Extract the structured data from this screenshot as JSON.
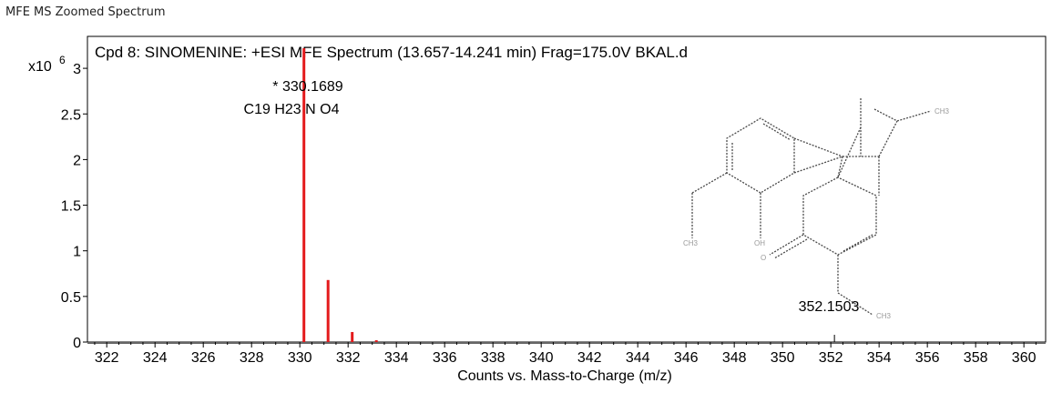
{
  "window_title": "MFE MS Zoomed Spectrum",
  "colors": {
    "peak": "#e41a1c",
    "axis": "#000000",
    "structure": "#555555",
    "structure_label": "#9a9a9a"
  },
  "chart_data": {
    "type": "bar",
    "title": "Cpd 8: SINOMENINE: +ESI MFE Spectrum (13.657-14.241 min) Frag=175.0V BKAL.d",
    "xlabel": "Counts vs. Mass-to-Charge (m/z)",
    "y_exponent_label": "x10",
    "y_exponent_power": "6",
    "xlim": [
      321.2,
      360.9
    ],
    "ylim": [
      0,
      3.35
    ],
    "x_ticks": [
      322,
      324,
      326,
      328,
      330,
      332,
      334,
      336,
      338,
      340,
      342,
      344,
      346,
      348,
      350,
      352,
      354,
      356,
      358,
      360
    ],
    "x_tick_labels": [
      "322",
      "324",
      "326",
      "328",
      "330",
      "332",
      "334",
      "336",
      "338",
      "340",
      "342",
      "344",
      "346",
      "348",
      "350",
      "352",
      "354",
      "356",
      "358",
      "360"
    ],
    "y_ticks": [
      0,
      0.5,
      1,
      1.5,
      2,
      2.5,
      3
    ],
    "y_tick_labels": [
      "0",
      "0.5",
      "1",
      "1.5",
      "2",
      "2.5",
      "3"
    ],
    "series": [
      {
        "x": [
          330.17,
          331.17,
          332.17,
          333.17
        ],
        "values": [
          3.22,
          0.68,
          0.11,
          0.02
        ]
      }
    ],
    "annotations": [
      {
        "text": "* 330.1689",
        "x": 330.17
      },
      {
        "text": "C19 H23 N O4",
        "x": 330.17
      }
    ],
    "marker_label": {
      "text": "352.1503",
      "x": 352.15
    },
    "structure_atom_labels": [
      "CH3",
      "CH3",
      "OH",
      "O",
      "CH3"
    ]
  }
}
